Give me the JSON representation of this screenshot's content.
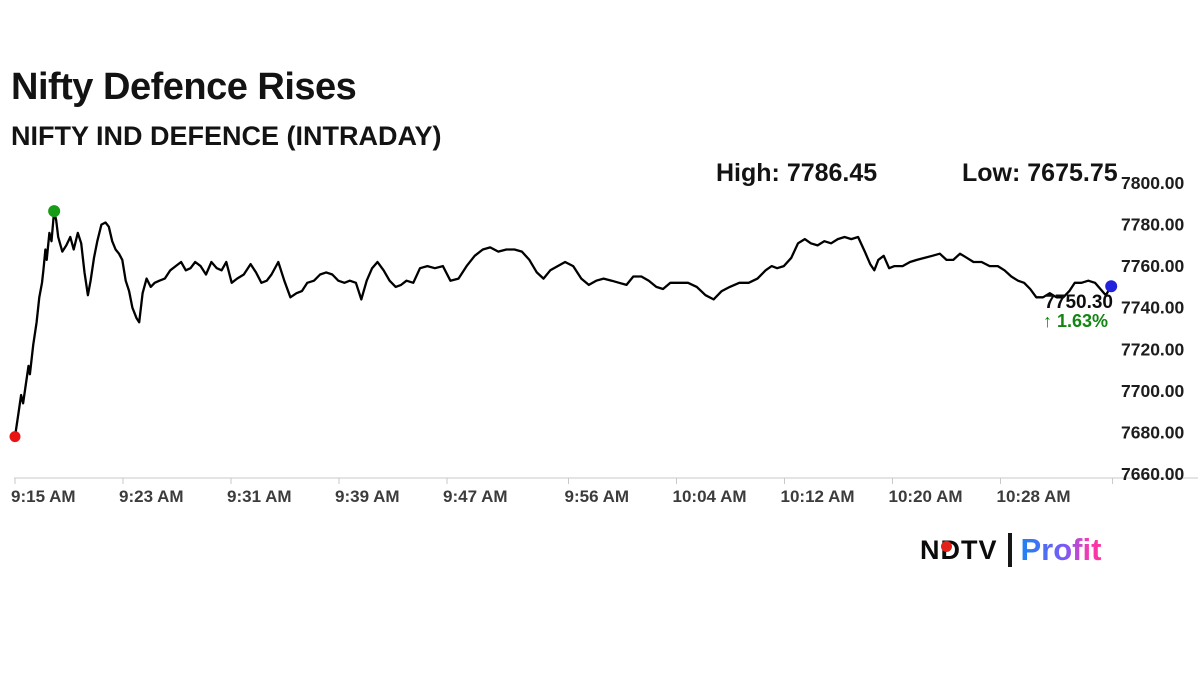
{
  "page": {
    "background": "#ffffff"
  },
  "header": {
    "title": "Nifty Defence Rises",
    "subtitle": "NIFTY IND DEFENCE (INTRADAY)"
  },
  "stats": {
    "high_label": "High: 7786.45",
    "low_label": "Low: 7675.75"
  },
  "chart_data": {
    "type": "line",
    "title": "NIFTY IND DEFENCE (INTRADAY)",
    "xlabel": "",
    "ylabel": "",
    "x_unit": "minutes after 9:15 AM",
    "xlim": [
      0,
      81.5
    ],
    "ylim": [
      7660,
      7800
    ],
    "grid": false,
    "legend": false,
    "line_color": "#000000",
    "axis_color": "#c9c9c9",
    "x_ticks": [
      {
        "t": 0,
        "label": "9:15 AM"
      },
      {
        "t": 8,
        "label": "9:23 AM"
      },
      {
        "t": 16,
        "label": "9:31 AM"
      },
      {
        "t": 24,
        "label": "9:39 AM"
      },
      {
        "t": 32,
        "label": "9:47 AM"
      },
      {
        "t": 41,
        "label": "9:56 AM"
      },
      {
        "t": 49,
        "label": "10:04 AM"
      },
      {
        "t": 57,
        "label": "10:12 AM"
      },
      {
        "t": 65,
        "label": "10:20 AM"
      },
      {
        "t": 73,
        "label": "10:28 AM"
      },
      {
        "t": 81.3,
        "label": ""
      }
    ],
    "y_ticks": [
      {
        "v": 7800,
        "label": "7800.00"
      },
      {
        "v": 7780,
        "label": "7780.00"
      },
      {
        "v": 7760,
        "label": "7760.00"
      },
      {
        "v": 7740,
        "label": "7740.00"
      },
      {
        "v": 7720,
        "label": "7720.00"
      },
      {
        "v": 7700,
        "label": "7700.00"
      },
      {
        "v": 7680,
        "label": "7680.00"
      },
      {
        "v": 7660,
        "label": "7660.00"
      }
    ],
    "high": 7786.45,
    "low": 7675.75,
    "last_price": "7750.30",
    "change_percent": "↑ 1.63%",
    "change_color": "#128512",
    "markers": [
      {
        "name": "open-marker",
        "t": 0,
        "value": 7678,
        "color": "#e81414",
        "r": 5.5
      },
      {
        "name": "high-marker",
        "t": 2.9,
        "value": 7786.45,
        "color": "#169c16",
        "r": 6
      },
      {
        "name": "last-marker",
        "t": 81.2,
        "value": 7750.3,
        "color": "#2222dd",
        "r": 6
      }
    ],
    "series": [
      {
        "name": "NIFTY IND DEFENCE",
        "color": "#000000",
        "points": [
          [
            0,
            7678
          ],
          [
            0.25,
            7689
          ],
          [
            0.45,
            7698
          ],
          [
            0.6,
            7694
          ],
          [
            0.8,
            7703
          ],
          [
            1.0,
            7712
          ],
          [
            1.1,
            7708
          ],
          [
            1.35,
            7722
          ],
          [
            1.6,
            7733
          ],
          [
            1.8,
            7745
          ],
          [
            2.0,
            7752
          ],
          [
            2.1,
            7758
          ],
          [
            2.25,
            7768
          ],
          [
            2.35,
            7763
          ],
          [
            2.55,
            7776
          ],
          [
            2.7,
            7772
          ],
          [
            2.9,
            7786.45
          ],
          [
            3.05,
            7782
          ],
          [
            3.2,
            7774
          ],
          [
            3.5,
            7767
          ],
          [
            3.8,
            7770
          ],
          [
            4.1,
            7774
          ],
          [
            4.35,
            7768
          ],
          [
            4.65,
            7776
          ],
          [
            4.9,
            7771
          ],
          [
            5.15,
            7757
          ],
          [
            5.4,
            7746
          ],
          [
            5.6,
            7753
          ],
          [
            5.85,
            7764
          ],
          [
            6.1,
            7772
          ],
          [
            6.4,
            7780
          ],
          [
            6.7,
            7781
          ],
          [
            6.95,
            7779
          ],
          [
            7.2,
            7772
          ],
          [
            7.45,
            7768
          ],
          [
            7.7,
            7766
          ],
          [
            7.95,
            7763
          ],
          [
            8.2,
            7753
          ],
          [
            8.45,
            7748
          ],
          [
            8.7,
            7740
          ],
          [
            9.0,
            7735
          ],
          [
            9.2,
            7733
          ],
          [
            9.45,
            7747
          ],
          [
            9.75,
            7754
          ],
          [
            10.05,
            7750
          ],
          [
            10.35,
            7752
          ],
          [
            10.7,
            7753
          ],
          [
            11.1,
            7754
          ],
          [
            11.5,
            7758
          ],
          [
            11.9,
            7760
          ],
          [
            12.3,
            7762
          ],
          [
            12.65,
            7758
          ],
          [
            13.0,
            7759
          ],
          [
            13.35,
            7762
          ],
          [
            13.75,
            7760
          ],
          [
            14.15,
            7756
          ],
          [
            14.55,
            7762
          ],
          [
            14.95,
            7759
          ],
          [
            15.3,
            7758
          ],
          [
            15.65,
            7762
          ],
          [
            16.05,
            7752
          ],
          [
            16.45,
            7754
          ],
          [
            16.95,
            7756
          ],
          [
            17.45,
            7761
          ],
          [
            17.85,
            7757
          ],
          [
            18.25,
            7752
          ],
          [
            18.65,
            7753
          ],
          [
            19.0,
            7756
          ],
          [
            19.5,
            7762
          ],
          [
            19.95,
            7753
          ],
          [
            20.4,
            7745
          ],
          [
            20.85,
            7747
          ],
          [
            21.25,
            7748
          ],
          [
            21.65,
            7752
          ],
          [
            22.15,
            7753
          ],
          [
            22.6,
            7756
          ],
          [
            23.05,
            7757
          ],
          [
            23.5,
            7756
          ],
          [
            23.95,
            7753
          ],
          [
            24.4,
            7752
          ],
          [
            24.8,
            7753
          ],
          [
            25.25,
            7752
          ],
          [
            25.65,
            7744
          ],
          [
            26.05,
            7753
          ],
          [
            26.45,
            7759
          ],
          [
            26.85,
            7762
          ],
          [
            27.3,
            7758
          ],
          [
            27.75,
            7753
          ],
          [
            28.2,
            7750
          ],
          [
            28.6,
            7751
          ],
          [
            29.0,
            7753
          ],
          [
            29.5,
            7752
          ],
          [
            30.0,
            7759
          ],
          [
            30.55,
            7760
          ],
          [
            31.1,
            7759
          ],
          [
            31.7,
            7760
          ],
          [
            32.25,
            7753
          ],
          [
            32.85,
            7754
          ],
          [
            33.45,
            7760
          ],
          [
            34.05,
            7765
          ],
          [
            34.65,
            7768
          ],
          [
            35.2,
            7769
          ],
          [
            35.8,
            7767
          ],
          [
            36.4,
            7768
          ],
          [
            37.0,
            7768
          ],
          [
            37.55,
            7767
          ],
          [
            38.1,
            7763
          ],
          [
            38.65,
            7757
          ],
          [
            39.15,
            7754
          ],
          [
            39.65,
            7758
          ],
          [
            40.2,
            7760
          ],
          [
            40.75,
            7762
          ],
          [
            41.35,
            7760
          ],
          [
            41.95,
            7754
          ],
          [
            42.5,
            7751
          ],
          [
            43.05,
            7753
          ],
          [
            43.6,
            7754
          ],
          [
            44.2,
            7753
          ],
          [
            44.75,
            7752
          ],
          [
            45.3,
            7751
          ],
          [
            45.8,
            7755
          ],
          [
            46.4,
            7755
          ],
          [
            46.95,
            7753
          ],
          [
            47.5,
            7750
          ],
          [
            48.0,
            7749
          ],
          [
            48.55,
            7752
          ],
          [
            49.2,
            7752
          ],
          [
            49.85,
            7752
          ],
          [
            50.5,
            7750
          ],
          [
            51.15,
            7746
          ],
          [
            51.75,
            7744
          ],
          [
            52.35,
            7748
          ],
          [
            52.95,
            7750
          ],
          [
            53.65,
            7752
          ],
          [
            54.35,
            7752
          ],
          [
            55.0,
            7754
          ],
          [
            55.6,
            7758
          ],
          [
            56.05,
            7760
          ],
          [
            56.45,
            7759
          ],
          [
            56.95,
            7760
          ],
          [
            57.5,
            7764
          ],
          [
            58.0,
            7771
          ],
          [
            58.5,
            7773
          ],
          [
            58.95,
            7771
          ],
          [
            59.45,
            7770
          ],
          [
            59.95,
            7772
          ],
          [
            60.45,
            7771
          ],
          [
            60.95,
            7773
          ],
          [
            61.45,
            7774
          ],
          [
            61.95,
            7773
          ],
          [
            62.45,
            7774
          ],
          [
            62.95,
            7767
          ],
          [
            63.35,
            7761
          ],
          [
            63.65,
            7758
          ],
          [
            63.95,
            7763
          ],
          [
            64.35,
            7765
          ],
          [
            64.75,
            7759
          ],
          [
            65.15,
            7760
          ],
          [
            65.75,
            7760
          ],
          [
            66.3,
            7762
          ],
          [
            66.8,
            7763
          ],
          [
            67.4,
            7764
          ],
          [
            67.95,
            7765
          ],
          [
            68.5,
            7766
          ],
          [
            69.0,
            7763
          ],
          [
            69.5,
            7763
          ],
          [
            70.0,
            7766
          ],
          [
            70.5,
            7764
          ],
          [
            71.0,
            7762
          ],
          [
            71.6,
            7762
          ],
          [
            72.2,
            7760
          ],
          [
            72.8,
            7760
          ],
          [
            73.3,
            7758
          ],
          [
            73.8,
            7755
          ],
          [
            74.3,
            7753
          ],
          [
            74.75,
            7752
          ],
          [
            75.2,
            7749
          ],
          [
            75.65,
            7745
          ],
          [
            76.15,
            7745
          ],
          [
            76.65,
            7747
          ],
          [
            77.15,
            7745
          ],
          [
            77.65,
            7745
          ],
          [
            78.1,
            7748
          ],
          [
            78.5,
            7752
          ],
          [
            79.0,
            7752
          ],
          [
            79.5,
            7753
          ],
          [
            80.0,
            7752
          ],
          [
            80.4,
            7749
          ],
          [
            80.8,
            7746
          ],
          [
            81.2,
            7750.3
          ]
        ]
      }
    ]
  },
  "footer_logo": {
    "ndtv": "NDTV",
    "profit": "Profit",
    "dot_color": "#e32119",
    "profit_gradient_start": "#1E82F2",
    "profit_gradient_end": "#FF2FA0"
  }
}
